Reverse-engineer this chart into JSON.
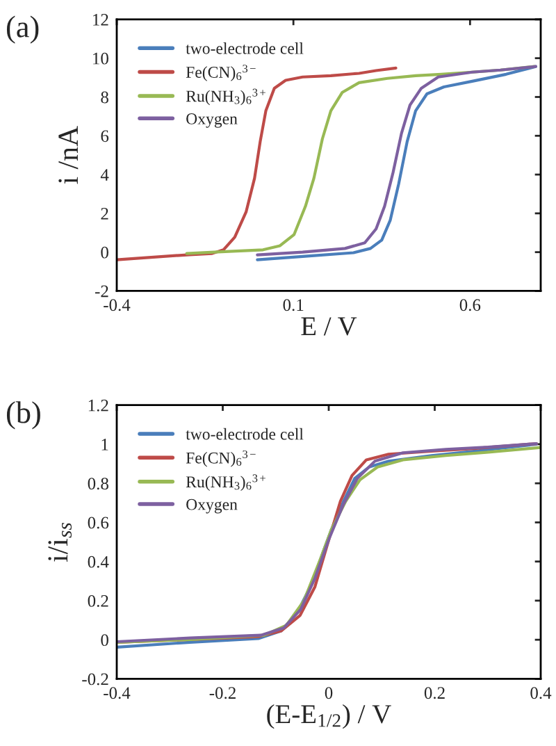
{
  "chart_data": [
    {
      "type": "line",
      "xlabel": "E / V",
      "ylabel": "i /nA",
      "annotations": [
        "(a)"
      ],
      "xlim": [
        -0.4,
        0.8
      ],
      "ylim": [
        -2,
        12
      ],
      "xticks": [
        -0.4,
        0.1,
        0.6
      ],
      "yticks": [
        -2,
        0,
        2,
        4,
        6,
        8,
        10,
        12
      ],
      "grid": false,
      "legend": "top left",
      "marker": "none",
      "line_style": "solid",
      "series": [
        {
          "name": "two-electrode cell",
          "color": "#4a7ebb",
          "x": [
            -0.002,
            0.126,
            0.27,
            0.318,
            0.35,
            0.374,
            0.398,
            0.422,
            0.446,
            0.478,
            0.526,
            0.606,
            0.702,
            0.786
          ],
          "values": [
            -0.39,
            -0.22,
            -0.03,
            0.19,
            0.62,
            1.64,
            3.52,
            5.7,
            7.29,
            8.16,
            8.52,
            8.81,
            9.17,
            9.57
          ]
        },
        {
          "name": "Fe(CN)$_{6}$$^{3−}$",
          "color": "#be4b48",
          "x": [
            -0.4,
            -0.194,
            -0.13,
            -0.098,
            -0.066,
            -0.034,
            -0.01,
            0.006,
            0.022,
            0.046,
            0.078,
            0.126,
            0.206,
            0.286,
            0.334,
            0.39
          ],
          "values": [
            -0.39,
            -0.13,
            -0.07,
            0.12,
            0.77,
            2.07,
            3.81,
            5.7,
            7.29,
            8.45,
            8.86,
            9.03,
            9.1,
            9.22,
            9.36,
            9.49
          ]
        },
        {
          "name": "Ru(NH$_{3}$)$_{6}$$^{3+}$",
          "color": "#98b954",
          "x": [
            -0.202,
            -0.114,
            0.014,
            0.062,
            0.102,
            0.134,
            0.158,
            0.182,
            0.206,
            0.238,
            0.286,
            0.366,
            0.446,
            0.518,
            0.606,
            0.686,
            0.782
          ],
          "values": [
            -0.07,
            0.01,
            0.12,
            0.33,
            0.91,
            2.36,
            3.81,
            5.84,
            7.29,
            8.23,
            8.74,
            8.96,
            9.1,
            9.17,
            9.28,
            9.39,
            9.57
          ]
        },
        {
          "name": "Oxygen",
          "color": "#7d60a0",
          "x": [
            -0.002,
            0.126,
            0.246,
            0.302,
            0.334,
            0.358,
            0.382,
            0.406,
            0.43,
            0.462,
            0.51,
            0.606,
            0.686,
            0.786
          ],
          "values": [
            -0.14,
            0.0,
            0.19,
            0.48,
            1.2,
            2.36,
            4.1,
            6.13,
            7.58,
            8.45,
            9.03,
            9.28,
            9.39,
            9.57
          ]
        }
      ]
    },
    {
      "type": "line",
      "xlabel": "(E-E$_{1/2}$) / V",
      "ylabel": "i/i$_{ss}$",
      "annotations": [
        "(b)"
      ],
      "xlim": [
        -0.4,
        0.4
      ],
      "ylim": [
        -0.2,
        1.2
      ],
      "xticks": [
        -0.4,
        -0.2,
        0,
        0.2,
        0.4
      ],
      "yticks": [
        -0.2,
        0,
        0.2,
        0.4,
        0.6,
        0.8,
        1,
        1.2
      ],
      "grid": false,
      "legend": "top left",
      "marker": "none",
      "line_style": "solid",
      "series": [
        {
          "name": "two-electrode cell",
          "color": "#4a7ebb",
          "x": [
            -0.4,
            -0.262,
            -0.133,
            -0.09,
            -0.059,
            -0.032,
            -0.011,
            0.005,
            0.028,
            0.049,
            0.076,
            0.113,
            0.194,
            0.274,
            0.392
          ],
          "values": [
            -0.038,
            -0.013,
            0.006,
            0.045,
            0.14,
            0.286,
            0.446,
            0.563,
            0.708,
            0.825,
            0.883,
            0.913,
            0.942,
            0.964,
            1.0
          ]
        },
        {
          "name": "Fe(CN)$_{6}$$^{3−}$",
          "color": "#be4b48",
          "x": [
            -0.4,
            -0.262,
            -0.133,
            -0.09,
            -0.054,
            -0.026,
            0.001,
            0.022,
            0.044,
            0.071,
            0.113,
            0.194,
            0.274,
            0.392
          ],
          "values": [
            -0.013,
            0.001,
            0.016,
            0.045,
            0.125,
            0.271,
            0.519,
            0.708,
            0.84,
            0.92,
            0.949,
            0.964,
            0.978,
            1.003
          ]
        },
        {
          "name": "Ru(NH$_{3}$)$_{6}$$^{3+}$",
          "color": "#98b954",
          "x": [
            -0.4,
            -0.262,
            -0.122,
            -0.08,
            -0.047,
            -0.015,
            0.005,
            0.032,
            0.059,
            0.092,
            0.14,
            0.221,
            0.301,
            0.4
          ],
          "values": [
            -0.013,
            0.001,
            0.023,
            0.074,
            0.198,
            0.417,
            0.563,
            0.708,
            0.818,
            0.883,
            0.92,
            0.942,
            0.959,
            0.983
          ]
        },
        {
          "name": "Oxygen",
          "color": "#7d60a0",
          "x": [
            -0.4,
            -0.262,
            -0.128,
            -0.085,
            -0.053,
            -0.026,
            0.001,
            0.028,
            0.054,
            0.087,
            0.14,
            0.221,
            0.301,
            0.392
          ],
          "values": [
            -0.01,
            0.009,
            0.023,
            0.06,
            0.155,
            0.315,
            0.519,
            0.694,
            0.825,
            0.913,
            0.956,
            0.974,
            0.985,
            1.003
          ]
        }
      ]
    }
  ]
}
